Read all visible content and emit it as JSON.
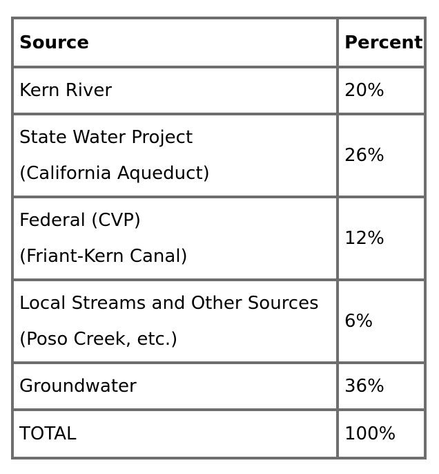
{
  "table": {
    "headers": {
      "source": "Source",
      "percent": "Percent"
    },
    "rows": [
      {
        "source_lines": [
          "Kern River"
        ],
        "percent": "20%"
      },
      {
        "source_lines": [
          "State Water Project",
          "(California Aqueduct)"
        ],
        "percent": "26%"
      },
      {
        "source_lines": [
          "Federal (CVP)",
          "(Friant-Kern Canal)"
        ],
        "percent": "12%"
      },
      {
        "source_lines": [
          "Local Streams and Other Sources",
          "(Poso Creek, etc.)"
        ],
        "percent": "6%"
      },
      {
        "source_lines": [
          "Groundwater"
        ],
        "percent": "36%"
      }
    ],
    "total": {
      "label": "TOTAL",
      "percent": "100%"
    }
  }
}
